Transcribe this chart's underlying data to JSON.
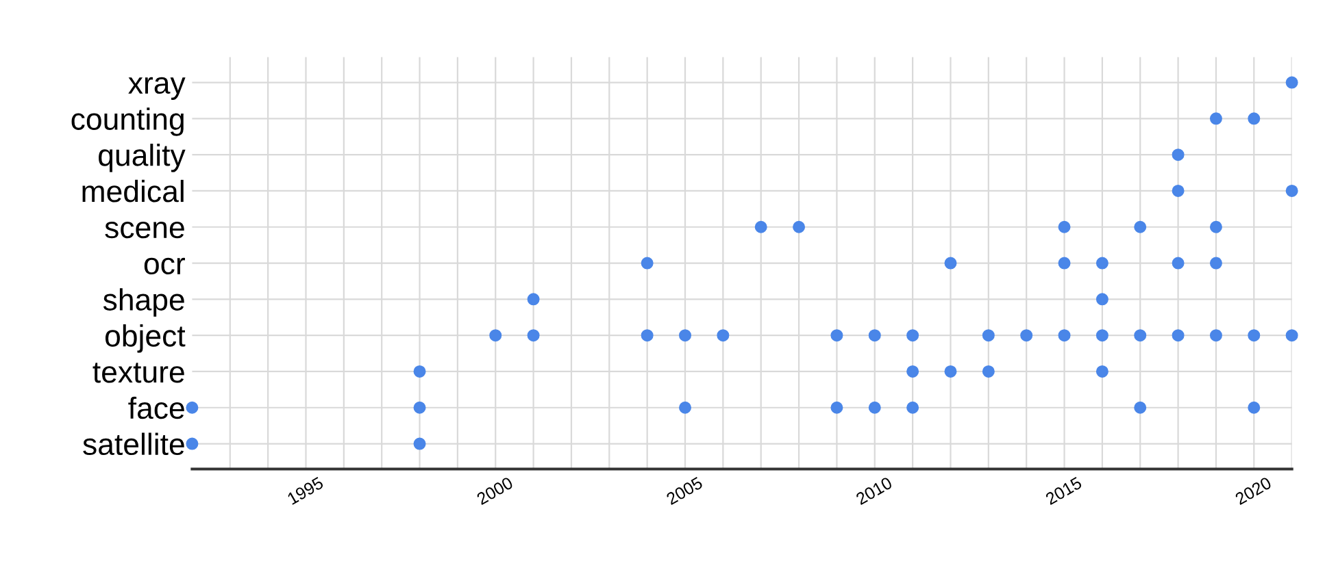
{
  "chart_data": {
    "type": "scatter",
    "orientation": "horizontal",
    "categories": [
      "xray",
      "counting",
      "quality",
      "medical",
      "scene",
      "ocr",
      "shape",
      "object",
      "texture",
      "face",
      "satellite"
    ],
    "series": [
      {
        "color": "#4a86e8",
        "values": [
          2021,
          2019,
          2018,
          2018,
          2007,
          2004,
          2001,
          2000,
          1998,
          1992,
          1992
        ]
      },
      {
        "color": "#4a86e8",
        "values": [
          null,
          2020,
          null,
          2021,
          2008,
          2012,
          2016,
          2001,
          2011,
          1998,
          1998
        ]
      },
      {
        "color": "#4a86e8",
        "values": [
          null,
          null,
          null,
          null,
          2015,
          2015,
          null,
          2004,
          2012,
          2005,
          null
        ]
      },
      {
        "color": "#4a86e8",
        "values": [
          null,
          null,
          null,
          null,
          2017,
          2016,
          null,
          2005,
          2013,
          2009,
          null
        ]
      },
      {
        "color": "#4a86e8",
        "values": [
          null,
          null,
          null,
          null,
          2019,
          2018,
          null,
          2006,
          2016,
          2010,
          null
        ]
      },
      {
        "color": "#4a86e8",
        "values": [
          null,
          null,
          null,
          null,
          null,
          2019,
          null,
          2009,
          null,
          2011,
          null
        ]
      },
      {
        "color": "#4a86e8",
        "values": [
          null,
          null,
          null,
          null,
          null,
          null,
          null,
          2010,
          null,
          2017,
          null
        ]
      },
      {
        "color": "#4a86e8",
        "values": [
          null,
          null,
          null,
          null,
          null,
          null,
          null,
          2011,
          null,
          2020,
          null
        ]
      },
      {
        "color": "#4a86e8",
        "values": [
          null,
          null,
          null,
          null,
          null,
          null,
          null,
          2013,
          null,
          null,
          null
        ]
      },
      {
        "color": "#4a86e8",
        "values": [
          null,
          null,
          null,
          null,
          null,
          null,
          null,
          2014,
          null,
          null,
          null
        ]
      },
      {
        "color": "#4a86e8",
        "values": [
          null,
          null,
          null,
          null,
          null,
          null,
          null,
          2015,
          null,
          null,
          null
        ]
      },
      {
        "color": "#4a86e8",
        "values": [
          null,
          null,
          null,
          null,
          null,
          null,
          null,
          2016,
          null,
          null,
          null
        ]
      },
      {
        "color": "#4a86e8",
        "values": [
          null,
          null,
          null,
          null,
          null,
          null,
          null,
          2017,
          null,
          null,
          null
        ]
      },
      {
        "color": "#4a86e8",
        "values": [
          null,
          null,
          null,
          null,
          null,
          null,
          null,
          2018,
          null,
          null,
          null
        ]
      },
      {
        "color": "#4a86e8",
        "values": [
          null,
          null,
          null,
          null,
          null,
          null,
          null,
          2019,
          null,
          null,
          null
        ]
      },
      {
        "color": "#4a86e8",
        "values": [
          null,
          null,
          null,
          null,
          null,
          null,
          null,
          2020,
          null,
          null,
          null
        ]
      },
      {
        "color": "#4a86e8",
        "values": [
          null,
          null,
          null,
          null,
          null,
          null,
          null,
          2021,
          null,
          null,
          null
        ]
      }
    ],
    "xlim": [
      1992,
      2021
    ],
    "xticks": [
      {
        "value": 1993,
        "label": null
      },
      {
        "value": 1994,
        "label": null
      },
      1995,
      {
        "value": 1996,
        "label": null
      },
      {
        "value": 1997,
        "label": null
      },
      {
        "value": 1998,
        "label": null
      },
      {
        "value": 1999,
        "label": null
      },
      2000,
      {
        "value": 2001,
        "label": null
      },
      {
        "value": 2002,
        "label": null
      },
      {
        "value": 2003,
        "label": null
      },
      {
        "value": 2004,
        "label": null
      },
      2005,
      {
        "value": 2006,
        "label": null
      },
      {
        "value": 2007,
        "label": null
      },
      {
        "value": 2008,
        "label": null
      },
      {
        "value": 2009,
        "label": null
      },
      2010,
      {
        "value": 2011,
        "label": null
      },
      {
        "value": 2012,
        "label": null
      },
      {
        "value": 2013,
        "label": null
      },
      {
        "value": 2014,
        "label": null
      },
      2015,
      {
        "value": 2016,
        "label": null
      },
      {
        "value": 2017,
        "label": null
      },
      {
        "value": 2018,
        "label": null
      },
      {
        "value": 2019,
        "label": null
      },
      2020,
      {
        "value": 2021,
        "label": null
      }
    ],
    "grid": true,
    "marker": "circle"
  }
}
